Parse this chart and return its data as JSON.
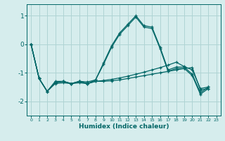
{
  "xlabel": "Humidex (Indice chaleur)",
  "ylabel": "",
  "xlim": [
    -0.5,
    23.5
  ],
  "ylim": [
    -2.5,
    1.4
  ],
  "yticks": [
    -2,
    -1,
    0,
    1
  ],
  "xticks": [
    0,
    1,
    2,
    3,
    4,
    5,
    6,
    7,
    8,
    9,
    10,
    11,
    12,
    13,
    14,
    15,
    16,
    17,
    18,
    19,
    20,
    21,
    22,
    23
  ],
  "background_color": "#d6eded",
  "grid_color": "#afd4d4",
  "line_color": "#006666",
  "series": [
    {
      "x": [
        0,
        1,
        2,
        3,
        4,
        5,
        6,
        7,
        8,
        9,
        10,
        11,
        12,
        13,
        14,
        15,
        16,
        17,
        18,
        19,
        20,
        21,
        22,
        23
      ],
      "y": [
        0.0,
        -1.2,
        -1.65,
        -1.35,
        -1.3,
        -1.38,
        -1.3,
        -1.38,
        -1.3,
        -1.3,
        -1.28,
        -1.25,
        -1.2,
        -1.15,
        -1.1,
        -1.05,
        -1.0,
        -0.95,
        -0.9,
        -0.85,
        -0.82,
        -1.6,
        -1.55,
        null
      ]
    },
    {
      "x": [
        0,
        1,
        2,
        3,
        4,
        5,
        6,
        7,
        8,
        9,
        10,
        11,
        12,
        13,
        14,
        15,
        16,
        17,
        18,
        19,
        20,
        21,
        22,
        23
      ],
      "y": [
        0.0,
        -1.2,
        -1.65,
        -1.35,
        -1.3,
        -1.38,
        -1.3,
        -1.38,
        -1.3,
        -1.27,
        -1.23,
        -1.18,
        -1.12,
        -1.05,
        -0.98,
        -0.9,
        -0.82,
        -0.73,
        -0.63,
        -0.78,
        -0.9,
        -1.55,
        -1.5,
        null
      ]
    },
    {
      "x": [
        0,
        1,
        2,
        3,
        4,
        5,
        6,
        7,
        8,
        9,
        10,
        11,
        12,
        13,
        14,
        15,
        16,
        17,
        18,
        19,
        20,
        21,
        22,
        23
      ],
      "y": [
        0.0,
        -1.2,
        -1.65,
        -1.38,
        -1.35,
        -1.38,
        -1.35,
        -1.38,
        -1.25,
        -0.7,
        -0.1,
        0.35,
        0.65,
        0.95,
        0.6,
        0.55,
        -0.15,
        -0.95,
        -0.85,
        -0.85,
        -1.1,
        -1.75,
        -1.55,
        null
      ]
    },
    {
      "x": [
        0,
        1,
        2,
        3,
        4,
        5,
        6,
        7,
        8,
        9,
        10,
        11,
        12,
        13,
        14,
        15,
        16,
        17,
        18,
        19,
        20,
        21,
        22,
        23
      ],
      "y": [
        0.0,
        -1.2,
        -1.65,
        -1.3,
        -1.3,
        -1.38,
        -1.3,
        -1.32,
        -1.25,
        -0.65,
        -0.05,
        0.4,
        0.7,
        1.0,
        0.65,
        0.6,
        -0.1,
        -0.9,
        -0.8,
        -0.8,
        -1.05,
        -1.7,
        -1.5,
        null
      ]
    }
  ]
}
